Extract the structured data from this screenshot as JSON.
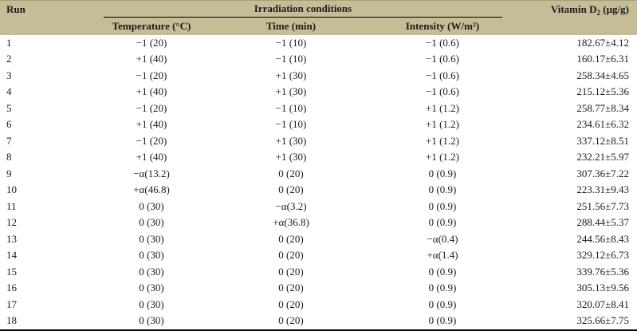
{
  "colors": {
    "header_bg": "#c4bd96",
    "header_top_edge": "#a59e7a",
    "rule": "#000000",
    "text": "#1b1b20"
  },
  "table": {
    "header": {
      "run": "Run",
      "group": "Irradiation conditions",
      "sub_columns": [
        "Temperature (°C)",
        "Time (min)",
        "Intensity (W/m²)"
      ],
      "vitamin": {
        "prefix": "Vitamin D",
        "sub": "2",
        "suffix": " (µg/g)"
      }
    },
    "rows": [
      {
        "run": "1",
        "temperature": "−1 (20)",
        "time": "−1 (10)",
        "intensity": "−1 (0.6)",
        "vitamin_d2": "182.67±4.12"
      },
      {
        "run": "2",
        "temperature": "+1 (40)",
        "time": "−1 (10)",
        "intensity": "−1 (0.6)",
        "vitamin_d2": "160.17±6.31"
      },
      {
        "run": "3",
        "temperature": "−1 (20)",
        "time": "+1 (30)",
        "intensity": "−1 (0.6)",
        "vitamin_d2": "258.34±4.65"
      },
      {
        "run": "4",
        "temperature": "+1 (40)",
        "time": "+1 (30)",
        "intensity": "−1 (0.6)",
        "vitamin_d2": "215.12±5.36"
      },
      {
        "run": "5",
        "temperature": "−1 (20)",
        "time": "−1 (10)",
        "intensity": "+1 (1.2)",
        "vitamin_d2": "258.77±8.34"
      },
      {
        "run": "6",
        "temperature": "+1 (40)",
        "time": "−1 (10)",
        "intensity": "+1 (1.2)",
        "vitamin_d2": "234.61±6.32"
      },
      {
        "run": "7",
        "temperature": "−1 (20)",
        "time": "+1 (30)",
        "intensity": "+1 (1.2)",
        "vitamin_d2": "337.12±8.51"
      },
      {
        "run": "8",
        "temperature": "+1 (40)",
        "time": "+1 (30)",
        "intensity": "+1 (1.2)",
        "vitamin_d2": "232.21±5.97"
      },
      {
        "run": "9",
        "temperature": "−α(13.2)",
        "time": "0 (20)",
        "intensity": "0 (0.9)",
        "vitamin_d2": "307.36±7.22"
      },
      {
        "run": "10",
        "temperature": "+α(46.8)",
        "time": "0 (20)",
        "intensity": "0 (0.9)",
        "vitamin_d2": "223.31±9.43"
      },
      {
        "run": "11",
        "temperature": "0 (30)",
        "time": "−α(3.2)",
        "intensity": "0 (0.9)",
        "vitamin_d2": "251.56±7.73"
      },
      {
        "run": "12",
        "temperature": "0 (30)",
        "time": "+α(36.8)",
        "intensity": "0 (0.9)",
        "vitamin_d2": "288.44±5.37"
      },
      {
        "run": "13",
        "temperature": "0 (30)",
        "time": "0 (20)",
        "intensity": "−α(0.4)",
        "vitamin_d2": "244.56±8.43"
      },
      {
        "run": "14",
        "temperature": "0 (30)",
        "time": "0 (20)",
        "intensity": "+α(1.4)",
        "vitamin_d2": "329.12±6.73"
      },
      {
        "run": "15",
        "temperature": "0 (30)",
        "time": "0 (20)",
        "intensity": "0 (0.9)",
        "vitamin_d2": "339.76±5.36"
      },
      {
        "run": "16",
        "temperature": "0 (30)",
        "time": "0 (20)",
        "intensity": "0 (0.9)",
        "vitamin_d2": "305.13±9.56"
      },
      {
        "run": "17",
        "temperature": "0 (30)",
        "time": "0 (20)",
        "intensity": "0 (0.9)",
        "vitamin_d2": "320.07±8.41"
      },
      {
        "run": "18",
        "temperature": "0 (30)",
        "time": "0 (20)",
        "intensity": "0 (0.9)",
        "vitamin_d2": "325.66±7.75"
      }
    ]
  }
}
